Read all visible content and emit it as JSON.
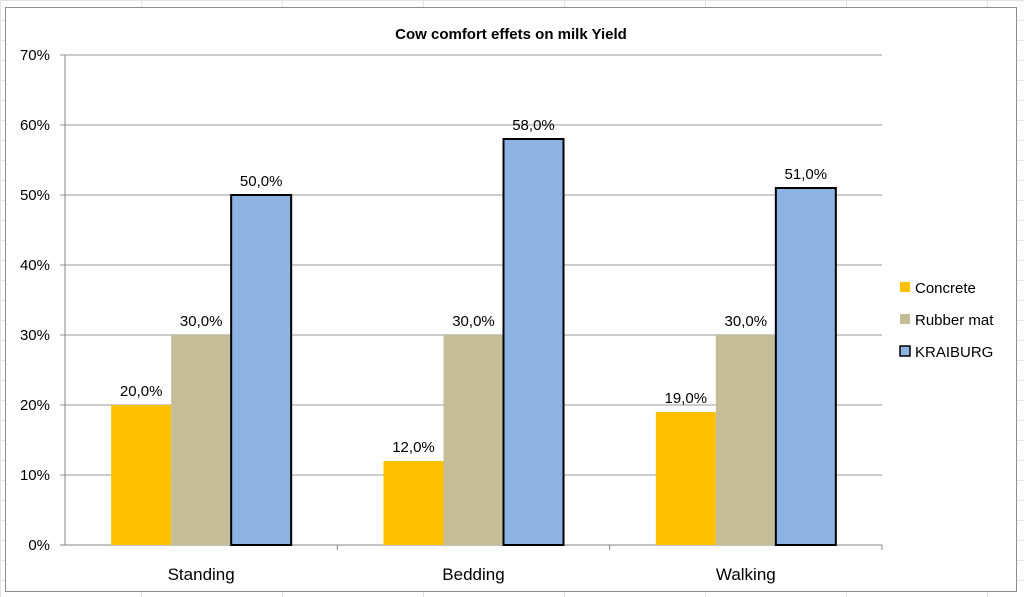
{
  "chart_data": {
    "type": "bar",
    "title": "Cow comfort effets on milk Yield",
    "categories": [
      "Standing",
      "Bedding",
      "Walking"
    ],
    "series": [
      {
        "name": "Concrete",
        "values": [
          20.0,
          12.0,
          19.0
        ],
        "color": "#ffc000",
        "labels": [
          "20,0%",
          "12,0%",
          "19,0%"
        ]
      },
      {
        "name": "Rubber mat",
        "values": [
          30.0,
          30.0,
          30.0
        ],
        "color": "#c4bd97",
        "labels": [
          "30,0%",
          "30,0%",
          "30,0%"
        ]
      },
      {
        "name": "KRAIBURG",
        "values": [
          50.0,
          58.0,
          51.0
        ],
        "color": "#8db3e2",
        "labels": [
          "50,0%",
          "58,0%",
          "51,0%"
        ]
      }
    ],
    "ylim": [
      0,
      70
    ],
    "yticks": [
      "0%",
      "10%",
      "20%",
      "30%",
      "40%",
      "50%",
      "60%",
      "70%"
    ],
    "xlabel": "",
    "ylabel": "",
    "grid": true,
    "legend": "right"
  }
}
